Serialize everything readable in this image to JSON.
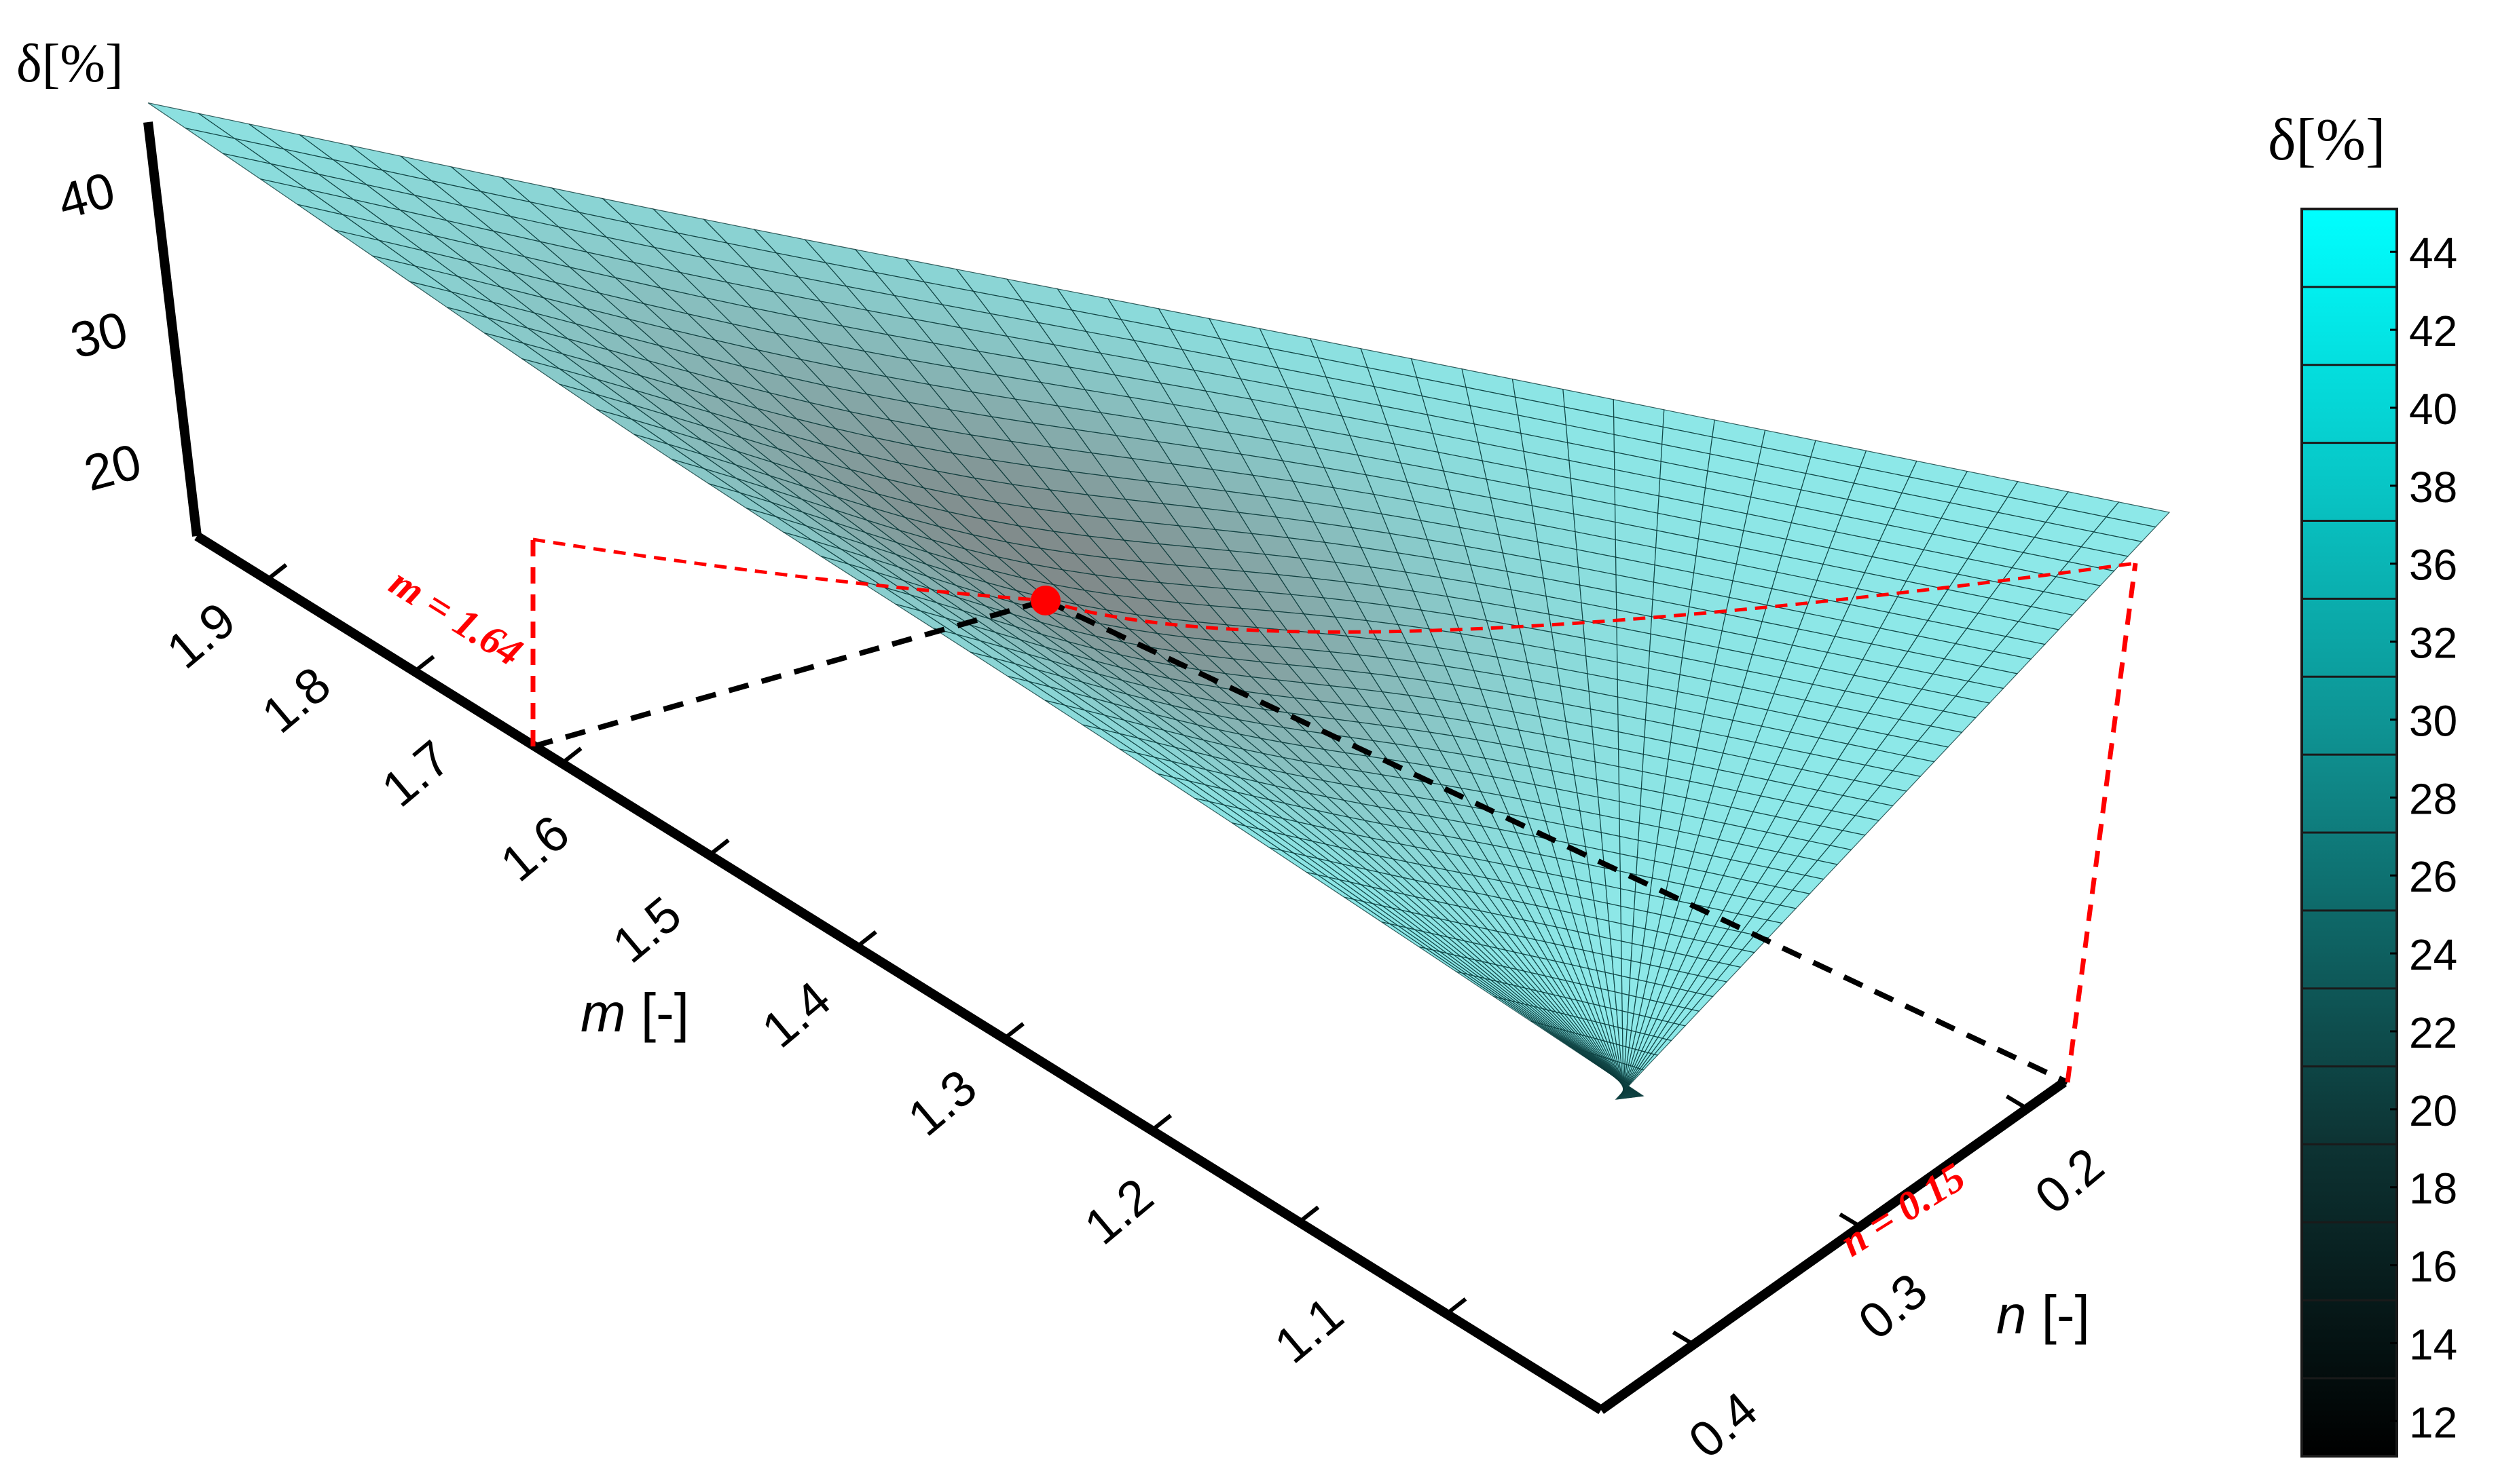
{
  "chart_data": {
    "type": "surface",
    "z_label": "δ[%]",
    "x_label_italic": "m",
    "x_label_unit": " [-]",
    "y_label_italic": "n",
    "y_label_unit": " [-]",
    "m_ticks": [
      "1.9",
      "1.8",
      "1.7",
      "1.6",
      "1.5",
      "1.4",
      "1.3",
      "1.2",
      "1.1"
    ],
    "n_ticks": [
      "0.2",
      "0.3",
      "0.4"
    ],
    "z_ticks": [
      "40",
      "30",
      "20"
    ],
    "m_range": [
      1.0,
      1.95
    ],
    "n_range": [
      0.14,
      0.45
    ],
    "z_range": [
      15,
      45
    ],
    "optimum": {
      "m": 1.64,
      "n": 0.15,
      "delta": 15
    },
    "annotations": {
      "m_opt": "m = 1.64",
      "n_opt": "n = 0.15"
    },
    "colorbar": {
      "title": "δ[%]",
      "ticks": [
        "44",
        "42",
        "40",
        "38",
        "36",
        "32",
        "30",
        "28",
        "26",
        "24",
        "22",
        "20",
        "18",
        "16",
        "14",
        "12"
      ],
      "min_color": "#000000",
      "max_color": "#00ffff"
    },
    "colors": {
      "surface_high": "#2fd6d6",
      "surface_low": "#1a2a2a",
      "marker": "#ff0000",
      "dashed_guides_black": "#000000",
      "dashed_guides_red": "#ff0000"
    }
  }
}
